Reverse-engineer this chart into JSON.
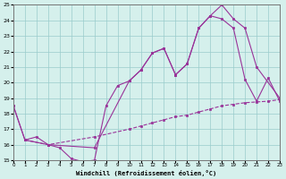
{
  "xlabel": "Windchill (Refroidissement éolien,°C)",
  "xlim": [
    0,
    23
  ],
  "ylim": [
    15,
    25
  ],
  "xticks": [
    0,
    1,
    2,
    3,
    4,
    5,
    6,
    7,
    8,
    9,
    10,
    11,
    12,
    13,
    14,
    15,
    16,
    17,
    18,
    19,
    20,
    21,
    22,
    23
  ],
  "yticks": [
    15,
    16,
    17,
    18,
    19,
    20,
    21,
    22,
    23,
    24,
    25
  ],
  "bg_color": "#d5f0ec",
  "line_color": "#993399",
  "grid_color": "#99cccc",
  "line1_x": [
    0,
    1,
    2,
    3,
    4,
    5,
    6,
    7,
    8,
    9,
    10,
    11,
    12,
    13,
    14,
    15,
    16,
    17,
    18,
    19,
    20,
    21,
    22,
    23
  ],
  "line1_y": [
    18.5,
    16.3,
    16.5,
    16.0,
    15.8,
    15.1,
    14.9,
    15.0,
    18.5,
    19.8,
    20.1,
    20.8,
    21.9,
    22.2,
    20.5,
    21.2,
    23.5,
    24.3,
    24.1,
    23.5,
    20.2,
    18.8,
    20.3,
    18.8
  ],
  "line2_x": [
    0,
    1,
    3,
    7,
    10,
    11,
    12,
    13,
    14,
    15,
    16,
    17,
    18,
    19,
    20,
    21,
    23
  ],
  "line2_y": [
    18.5,
    16.3,
    16.0,
    15.8,
    20.1,
    20.8,
    21.9,
    22.2,
    20.5,
    21.2,
    23.5,
    24.3,
    25.0,
    24.1,
    23.5,
    21.0,
    19.0
  ],
  "line3_x": [
    1,
    3,
    7,
    10,
    11,
    12,
    13,
    14,
    15,
    16,
    17,
    18,
    19,
    20,
    21,
    22,
    23
  ],
  "line3_y": [
    16.3,
    16.0,
    16.5,
    17.0,
    17.2,
    17.4,
    17.6,
    17.8,
    17.9,
    18.1,
    18.3,
    18.5,
    18.6,
    18.7,
    18.75,
    18.8,
    18.9
  ]
}
